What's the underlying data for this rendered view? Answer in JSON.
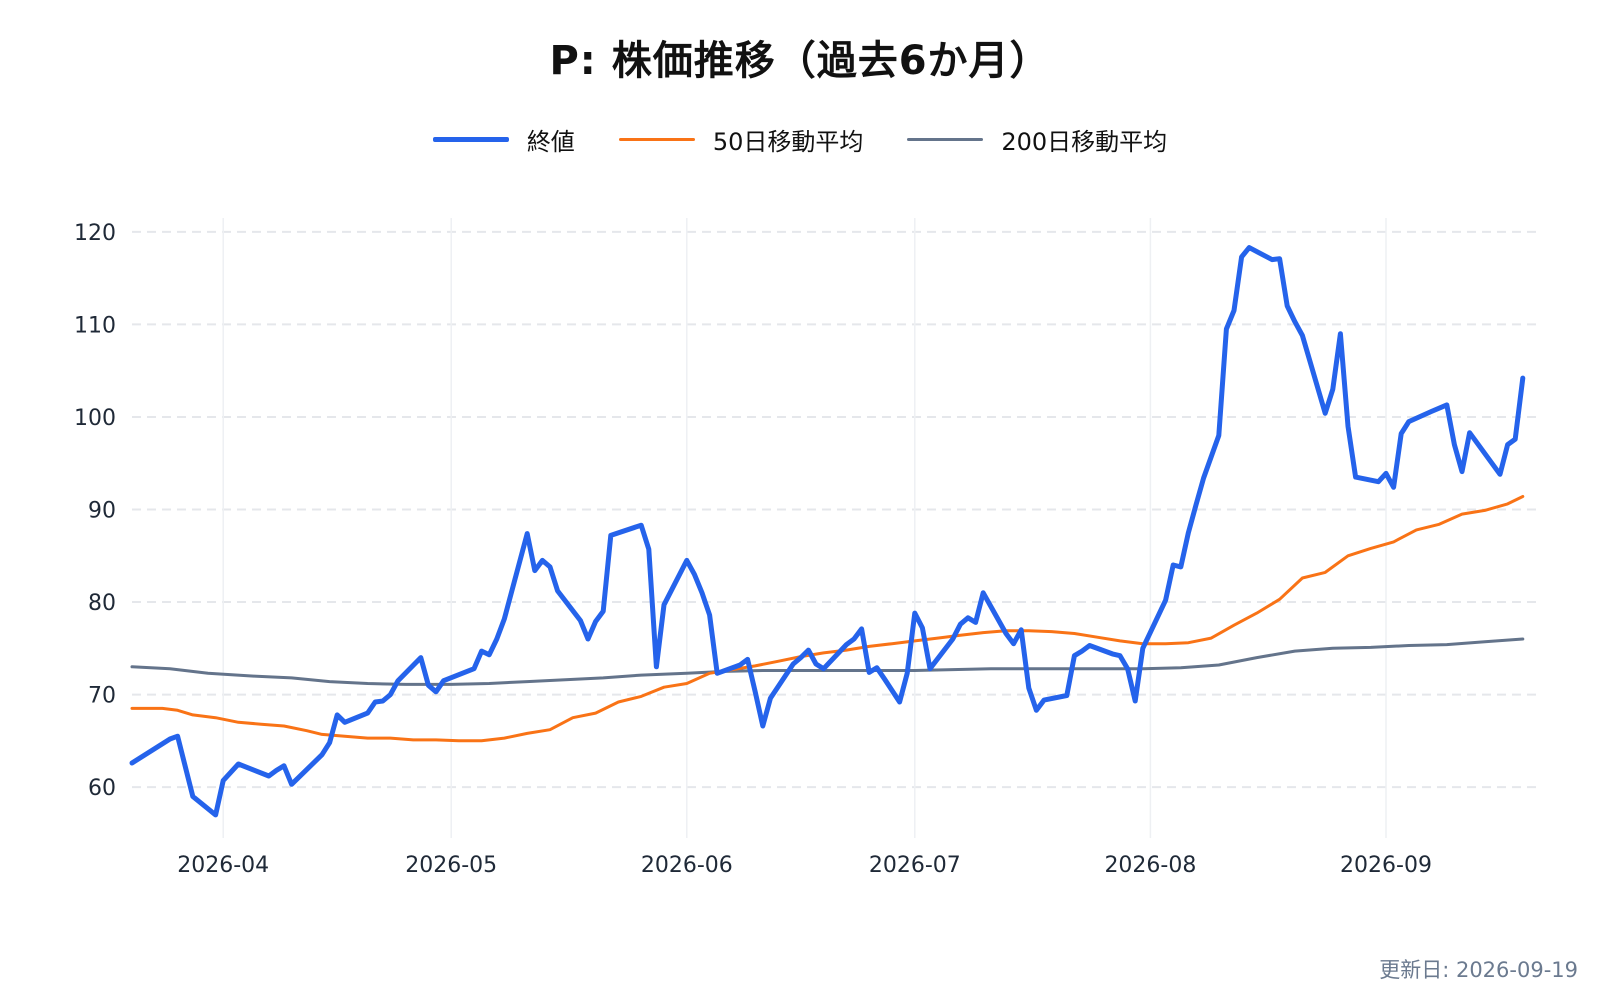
{
  "title": "P: 株価推移（過去6か月）",
  "updated": "更新日: 2026-09-19",
  "colors": {
    "close": "#2563eb",
    "ma50": "#f97316",
    "ma200": "#64748b",
    "grid": "#e5e7eb"
  },
  "legend": [
    {
      "label": "終値",
      "color": "#2563eb",
      "width": 5
    },
    {
      "label": "50日移動平均",
      "color": "#f97316",
      "width": 3
    },
    {
      "label": "200日移動平均",
      "color": "#64748b",
      "width": 3
    }
  ],
  "chart_data": {
    "type": "line",
    "title": "P: 株価推移（過去6か月）",
    "xlabel": "",
    "ylabel": "",
    "ylim": [
      54.5,
      121.5
    ],
    "yticks": [
      60,
      70,
      80,
      90,
      100,
      110,
      120
    ],
    "xlim": [
      "2026-03-20",
      "2026-09-21"
    ],
    "xticks": [
      "2026-04-01",
      "2026-05-01",
      "2026-06-01",
      "2026-07-01",
      "2026-08-01",
      "2026-09-01"
    ],
    "xtick_labels": [
      "2026-04",
      "2026-05",
      "2026-06",
      "2026-07",
      "2026-08",
      "2026-09"
    ],
    "grid": "horizontal dashed",
    "legend_position": "top-center",
    "series": [
      {
        "name": "終値",
        "points": [
          [
            "2026-03-20",
            62.6
          ],
          [
            "2026-03-25",
            65.2
          ],
          [
            "2026-03-26",
            65.5
          ],
          [
            "2026-03-28",
            59.0
          ],
          [
            "2026-03-31",
            57.0
          ],
          [
            "2026-04-01",
            60.7
          ],
          [
            "2026-04-03",
            62.5
          ],
          [
            "2026-04-07",
            61.2
          ],
          [
            "2026-04-08",
            61.8
          ],
          [
            "2026-04-09",
            62.3
          ],
          [
            "2026-04-10",
            60.3
          ],
          [
            "2026-04-14",
            63.5
          ],
          [
            "2026-04-15",
            64.8
          ],
          [
            "2026-04-16",
            67.8
          ],
          [
            "2026-04-17",
            67.0
          ],
          [
            "2026-04-20",
            68.0
          ],
          [
            "2026-04-21",
            69.2
          ],
          [
            "2026-04-22",
            69.3
          ],
          [
            "2026-04-23",
            70.0
          ],
          [
            "2026-04-24",
            71.5
          ],
          [
            "2026-04-27",
            74.0
          ],
          [
            "2026-04-28",
            71.0
          ],
          [
            "2026-04-29",
            70.3
          ],
          [
            "2026-04-30",
            71.5
          ],
          [
            "2026-05-04",
            72.8
          ],
          [
            "2026-05-05",
            74.7
          ],
          [
            "2026-05-06",
            74.3
          ],
          [
            "2026-05-07",
            76.0
          ],
          [
            "2026-05-08",
            78.2
          ],
          [
            "2026-05-11",
            87.4
          ],
          [
            "2026-05-12",
            83.4
          ],
          [
            "2026-05-13",
            84.5
          ],
          [
            "2026-05-14",
            83.8
          ],
          [
            "2026-05-15",
            81.2
          ],
          [
            "2026-05-18",
            78.0
          ],
          [
            "2026-05-19",
            76.0
          ],
          [
            "2026-05-20",
            77.9
          ],
          [
            "2026-05-21",
            79.0
          ],
          [
            "2026-05-22",
            87.2
          ],
          [
            "2026-05-26",
            88.3
          ],
          [
            "2026-05-27",
            85.7
          ],
          [
            "2026-05-28",
            73.0
          ],
          [
            "2026-05-29",
            79.7
          ],
          [
            "2026-06-01",
            84.5
          ],
          [
            "2026-06-02",
            83.0
          ],
          [
            "2026-06-03",
            81.0
          ],
          [
            "2026-06-04",
            78.6
          ],
          [
            "2026-06-05",
            72.3
          ],
          [
            "2026-06-08",
            73.2
          ],
          [
            "2026-06-09",
            73.8
          ],
          [
            "2026-06-10",
            70.3
          ],
          [
            "2026-06-11",
            66.6
          ],
          [
            "2026-06-12",
            69.6
          ],
          [
            "2026-06-15",
            73.3
          ],
          [
            "2026-06-16",
            74.0
          ],
          [
            "2026-06-17",
            74.8
          ],
          [
            "2026-06-18",
            73.3
          ],
          [
            "2026-06-19",
            72.8
          ],
          [
            "2026-06-22",
            75.4
          ],
          [
            "2026-06-23",
            76.0
          ],
          [
            "2026-06-24",
            77.1
          ],
          [
            "2026-06-25",
            72.4
          ],
          [
            "2026-06-26",
            72.9
          ],
          [
            "2026-06-27",
            71.7
          ],
          [
            "2026-06-29",
            69.2
          ],
          [
            "2026-06-30",
            72.3
          ],
          [
            "2026-07-01",
            78.8
          ],
          [
            "2026-07-02",
            77.2
          ],
          [
            "2026-07-03",
            72.8
          ],
          [
            "2026-07-06",
            76.0
          ],
          [
            "2026-07-07",
            77.6
          ],
          [
            "2026-07-08",
            78.3
          ],
          [
            "2026-07-09",
            77.8
          ],
          [
            "2026-07-10",
            81.0
          ],
          [
            "2026-07-13",
            76.6
          ],
          [
            "2026-07-14",
            75.5
          ],
          [
            "2026-07-15",
            77.0
          ],
          [
            "2026-07-16",
            70.7
          ],
          [
            "2026-07-17",
            68.3
          ],
          [
            "2026-07-18",
            69.4
          ],
          [
            "2026-07-21",
            69.9
          ],
          [
            "2026-07-22",
            74.2
          ],
          [
            "2026-07-23",
            74.7
          ],
          [
            "2026-07-24",
            75.3
          ],
          [
            "2026-07-27",
            74.4
          ],
          [
            "2026-07-28",
            74.2
          ],
          [
            "2026-07-29",
            72.8
          ],
          [
            "2026-07-30",
            69.3
          ],
          [
            "2026-07-31",
            75.0
          ],
          [
            "2026-08-03",
            80.2
          ],
          [
            "2026-08-04",
            84.0
          ],
          [
            "2026-08-05",
            83.8
          ],
          [
            "2026-08-06",
            87.5
          ],
          [
            "2026-08-07",
            90.5
          ],
          [
            "2026-08-08",
            93.4
          ],
          [
            "2026-08-10",
            98.0
          ],
          [
            "2026-08-11",
            109.5
          ],
          [
            "2026-08-12",
            111.5
          ],
          [
            "2026-08-13",
            117.3
          ],
          [
            "2026-08-14",
            118.3
          ],
          [
            "2026-08-17",
            117.0
          ],
          [
            "2026-08-18",
            117.1
          ],
          [
            "2026-08-19",
            112.0
          ],
          [
            "2026-08-20",
            110.3
          ],
          [
            "2026-08-21",
            108.8
          ],
          [
            "2026-08-24",
            100.4
          ],
          [
            "2026-08-25",
            103.0
          ],
          [
            "2026-08-26",
            109.0
          ],
          [
            "2026-08-27",
            99.0
          ],
          [
            "2026-08-28",
            93.5
          ],
          [
            "2026-08-31",
            93.0
          ],
          [
            "2026-09-01",
            93.9
          ],
          [
            "2026-09-02",
            92.4
          ],
          [
            "2026-09-03",
            98.2
          ],
          [
            "2026-09-04",
            99.5
          ],
          [
            "2026-09-07",
            100.6
          ],
          [
            "2026-09-09",
            101.3
          ],
          [
            "2026-09-10",
            97.0
          ],
          [
            "2026-09-11",
            94.1
          ],
          [
            "2026-09-12",
            98.3
          ],
          [
            "2026-09-16",
            93.8
          ],
          [
            "2026-09-17",
            97.0
          ],
          [
            "2026-09-18",
            97.6
          ],
          [
            "2026-09-19",
            104.2
          ]
        ]
      },
      {
        "name": "50日移動平均",
        "points": [
          [
            "2026-03-20",
            68.5
          ],
          [
            "2026-03-24",
            68.5
          ],
          [
            "2026-03-26",
            68.3
          ],
          [
            "2026-03-28",
            67.8
          ],
          [
            "2026-03-31",
            67.5
          ],
          [
            "2026-04-03",
            67.0
          ],
          [
            "2026-04-06",
            66.8
          ],
          [
            "2026-04-09",
            66.6
          ],
          [
            "2026-04-12",
            66.1
          ],
          [
            "2026-04-14",
            65.7
          ],
          [
            "2026-04-17",
            65.5
          ],
          [
            "2026-04-20",
            65.3
          ],
          [
            "2026-04-23",
            65.3
          ],
          [
            "2026-04-26",
            65.1
          ],
          [
            "2026-04-29",
            65.1
          ],
          [
            "2026-05-02",
            65.0
          ],
          [
            "2026-05-05",
            65.0
          ],
          [
            "2026-05-08",
            65.3
          ],
          [
            "2026-05-11",
            65.8
          ],
          [
            "2026-05-14",
            66.2
          ],
          [
            "2026-05-17",
            67.5
          ],
          [
            "2026-05-20",
            68.0
          ],
          [
            "2026-05-23",
            69.2
          ],
          [
            "2026-05-26",
            69.8
          ],
          [
            "2026-05-29",
            70.8
          ],
          [
            "2026-06-01",
            71.2
          ],
          [
            "2026-06-04",
            72.3
          ],
          [
            "2026-06-07",
            72.7
          ],
          [
            "2026-06-10",
            73.1
          ],
          [
            "2026-06-13",
            73.6
          ],
          [
            "2026-06-16",
            74.1
          ],
          [
            "2026-06-19",
            74.5
          ],
          [
            "2026-06-22",
            74.8
          ],
          [
            "2026-06-25",
            75.2
          ],
          [
            "2026-06-28",
            75.5
          ],
          [
            "2026-07-01",
            75.8
          ],
          [
            "2026-07-04",
            76.1
          ],
          [
            "2026-07-07",
            76.4
          ],
          [
            "2026-07-10",
            76.7
          ],
          [
            "2026-07-13",
            76.9
          ],
          [
            "2026-07-16",
            76.9
          ],
          [
            "2026-07-19",
            76.8
          ],
          [
            "2026-07-22",
            76.6
          ],
          [
            "2026-07-25",
            76.2
          ],
          [
            "2026-07-28",
            75.8
          ],
          [
            "2026-07-31",
            75.5
          ],
          [
            "2026-08-03",
            75.5
          ],
          [
            "2026-08-06",
            75.6
          ],
          [
            "2026-08-09",
            76.1
          ],
          [
            "2026-08-12",
            77.5
          ],
          [
            "2026-08-15",
            78.8
          ],
          [
            "2026-08-18",
            80.3
          ],
          [
            "2026-08-21",
            82.6
          ],
          [
            "2026-08-24",
            83.2
          ],
          [
            "2026-08-27",
            85.0
          ],
          [
            "2026-08-30",
            85.8
          ],
          [
            "2026-09-02",
            86.5
          ],
          [
            "2026-09-05",
            87.8
          ],
          [
            "2026-09-08",
            88.4
          ],
          [
            "2026-09-11",
            89.5
          ],
          [
            "2026-09-14",
            89.9
          ],
          [
            "2026-09-17",
            90.6
          ],
          [
            "2026-09-19",
            91.4
          ]
        ]
      },
      {
        "name": "200日移動平均",
        "points": [
          [
            "2026-03-20",
            73.0
          ],
          [
            "2026-03-25",
            72.8
          ],
          [
            "2026-03-30",
            72.3
          ],
          [
            "2026-04-05",
            72.0
          ],
          [
            "2026-04-10",
            71.8
          ],
          [
            "2026-04-15",
            71.4
          ],
          [
            "2026-04-20",
            71.2
          ],
          [
            "2026-04-25",
            71.1
          ],
          [
            "2026-05-01",
            71.1
          ],
          [
            "2026-05-06",
            71.2
          ],
          [
            "2026-05-11",
            71.4
          ],
          [
            "2026-05-16",
            71.6
          ],
          [
            "2026-05-21",
            71.8
          ],
          [
            "2026-05-26",
            72.1
          ],
          [
            "2026-06-01",
            72.3
          ],
          [
            "2026-06-06",
            72.5
          ],
          [
            "2026-06-11",
            72.6
          ],
          [
            "2026-06-16",
            72.6
          ],
          [
            "2026-06-21",
            72.6
          ],
          [
            "2026-06-26",
            72.6
          ],
          [
            "2026-07-01",
            72.6
          ],
          [
            "2026-07-06",
            72.7
          ],
          [
            "2026-07-11",
            72.8
          ],
          [
            "2026-07-16",
            72.8
          ],
          [
            "2026-07-21",
            72.8
          ],
          [
            "2026-07-26",
            72.8
          ],
          [
            "2026-07-31",
            72.8
          ],
          [
            "2026-08-05",
            72.9
          ],
          [
            "2026-08-10",
            73.2
          ],
          [
            "2026-08-15",
            74.0
          ],
          [
            "2026-08-20",
            74.7
          ],
          [
            "2026-08-25",
            75.0
          ],
          [
            "2026-08-30",
            75.1
          ],
          [
            "2026-09-04",
            75.3
          ],
          [
            "2026-09-09",
            75.4
          ],
          [
            "2026-09-14",
            75.7
          ],
          [
            "2026-09-19",
            76.0
          ]
        ]
      }
    ]
  }
}
